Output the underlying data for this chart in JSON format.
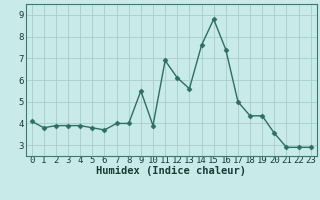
{
  "x": [
    0,
    1,
    2,
    3,
    4,
    5,
    6,
    7,
    8,
    9,
    10,
    11,
    12,
    13,
    14,
    15,
    16,
    17,
    18,
    19,
    20,
    21,
    22,
    23
  ],
  "y": [
    4.1,
    3.8,
    3.9,
    3.9,
    3.9,
    3.8,
    3.7,
    4.0,
    4.0,
    5.5,
    3.9,
    6.9,
    6.1,
    5.6,
    7.6,
    8.8,
    7.4,
    5.0,
    4.35,
    4.35,
    3.55,
    2.9,
    2.9,
    2.9
  ],
  "line_color": "#2d6e64",
  "marker": "D",
  "markersize": 2.5,
  "linewidth": 1.0,
  "bg_color": "#c8eae8",
  "grid_color": "#a8cdc9",
  "xlabel": "Humidex (Indice chaleur)",
  "xlim": [
    -0.5,
    23.5
  ],
  "ylim": [
    2.5,
    9.5
  ],
  "yticks": [
    3,
    4,
    5,
    6,
    7,
    8,
    9
  ],
  "xticks": [
    0,
    1,
    2,
    3,
    4,
    5,
    6,
    7,
    8,
    9,
    10,
    11,
    12,
    13,
    14,
    15,
    16,
    17,
    18,
    19,
    20,
    21,
    22,
    23
  ],
  "xlabel_fontsize": 7.5,
  "tick_fontsize": 6.5,
  "spine_color": "#3a7a72",
  "label_color": "#1a3a38"
}
